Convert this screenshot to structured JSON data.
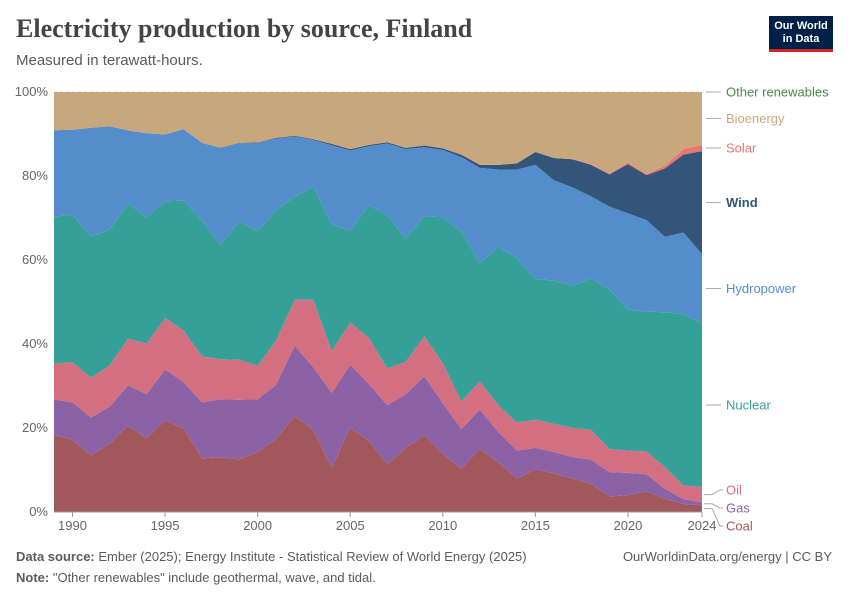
{
  "header": {
    "title": "Electricity production by source, Finland",
    "subtitle": "Measured in terawatt-hours.",
    "logo_line1": "Our World",
    "logo_line2": "in Data"
  },
  "footer": {
    "source_label": "Data source:",
    "source_text": "Ember (2025); Energy Institute - Statistical Review of World Energy (2025)",
    "note_label": "Note:",
    "note_text": "\"Other renewables\" include geothermal, wave, and tidal.",
    "credit": "OurWorldinData.org/energy | CC BY"
  },
  "colors": {
    "coal": "#a2585a",
    "gas": "#8b62a6",
    "oil": "#d46f81",
    "nuclear": "#34a097",
    "hydropower": "#548dcc",
    "wind": "#34557a",
    "solar": "#ee7371",
    "bioenergy": "#c9a77d",
    "other_renewables": "#4a8a4d"
  },
  "chart_data": {
    "type": "area",
    "stacking": "percent",
    "ylim": [
      0,
      100
    ],
    "y_ticks": [
      "0%",
      "20%",
      "40%",
      "60%",
      "80%",
      "100%"
    ],
    "y_tick_values": [
      0,
      20,
      40,
      60,
      80,
      100
    ],
    "x_ticks": [
      "1990",
      "1995",
      "2000",
      "2005",
      "2010",
      "2015",
      "2020",
      "2024"
    ],
    "x_tick_values": [
      1990,
      1995,
      2000,
      2005,
      2010,
      2015,
      2020,
      2024
    ],
    "x": [
      1989,
      1990,
      1991,
      1992,
      1993,
      1994,
      1995,
      1996,
      1997,
      1998,
      1999,
      2000,
      2001,
      2002,
      2003,
      2004,
      2005,
      2006,
      2007,
      2008,
      2009,
      2010,
      2011,
      2012,
      2013,
      2014,
      2015,
      2016,
      2017,
      2018,
      2019,
      2020,
      2021,
      2022,
      2023,
      2024
    ],
    "series": [
      {
        "name": "Coal",
        "key": "coal",
        "values": [
          18.3,
          17,
          13.5,
          16.5,
          21.3,
          17.5,
          22,
          18.7,
          11.8,
          13,
          12.5,
          14.3,
          17.3,
          22.8,
          19.5,
          9.5,
          20,
          17,
          11.3,
          15.3,
          18.1,
          13.8,
          10.3,
          15,
          11.8,
          8,
          10.2,
          9.2,
          8,
          6.5,
          3.7,
          4,
          4.9,
          3.1,
          1.9,
          1.6
        ]
      },
      {
        "name": "Gas",
        "key": "gas",
        "values": [
          8.5,
          8.8,
          9,
          9,
          10,
          10.5,
          12.2,
          10.3,
          12.3,
          13.7,
          14.2,
          12.5,
          13,
          16.7,
          15,
          16,
          15,
          13.5,
          14,
          12.7,
          14.1,
          12.1,
          9.4,
          9.3,
          7.2,
          6.8,
          5.1,
          5.1,
          5.1,
          5.6,
          5.8,
          5.3,
          4.1,
          2.4,
          1.2,
          0.7
        ]
      },
      {
        "name": "Oil",
        "key": "oil",
        "values": [
          8.5,
          9.5,
          9.5,
          10,
          11.5,
          12,
          12.3,
          11.5,
          10.1,
          9.5,
          9.5,
          8,
          10.5,
          11,
          16,
          9,
          10,
          11,
          8.7,
          7.7,
          9.5,
          9.5,
          6.6,
          6.7,
          6.3,
          6.8,
          6.7,
          6.7,
          6.9,
          6.9,
          5.5,
          5.3,
          5.4,
          5.2,
          3.2,
          3.7
        ]
      },
      {
        "name": "Nuclear",
        "key": "nuclear",
        "values": [
          35,
          34.7,
          33.5,
          33,
          33.5,
          30,
          28,
          29,
          30,
          27,
          33,
          32,
          31,
          24.5,
          27,
          27,
          22,
          31.5,
          36.2,
          29.3,
          28.4,
          34.7,
          40.4,
          28.1,
          37.6,
          39.6,
          33.6,
          34.1,
          33.8,
          35,
          38,
          33.5,
          33.3,
          36.9,
          40.9,
          39
        ]
      },
      {
        "name": "Hydropower",
        "key": "hydropower",
        "values": [
          20.6,
          20,
          26,
          25,
          18,
          20,
          16,
          16,
          17,
          23,
          18.5,
          21,
          17,
          14.3,
          11,
          17,
          19,
          14,
          17,
          21.3,
          16.4,
          16,
          17.7,
          22.6,
          18.4,
          21.3,
          27.2,
          23.9,
          23.5,
          18.9,
          19.7,
          22.9,
          21.8,
          18,
          19.4,
          16.5
        ]
      },
      {
        "name": "Wind",
        "key": "wind",
        "values": [
          0,
          0,
          0,
          0,
          0,
          0,
          0,
          0,
          0,
          0.1,
          0.1,
          0.1,
          0.2,
          0.2,
          0.2,
          0.3,
          0.3,
          0.3,
          0.3,
          0.3,
          0.4,
          0.4,
          0.6,
          0.7,
          1.1,
          1.5,
          3.1,
          5.3,
          6.7,
          7.3,
          7.7,
          11.7,
          10.7,
          16.3,
          18.6,
          24.5
        ]
      },
      {
        "name": "Solar",
        "key": "solar",
        "values": [
          0,
          0,
          0,
          0,
          0,
          0,
          0,
          0,
          0,
          0,
          0,
          0,
          0,
          0,
          0,
          0,
          0,
          0,
          0,
          0,
          0,
          0,
          0,
          0,
          0,
          0,
          0,
          0,
          0.1,
          0.1,
          0.2,
          0.3,
          0.3,
          0.6,
          1.3,
          1.5
        ]
      },
      {
        "name": "Bioenergy",
        "key": "bioenergy",
        "values": [
          9.1,
          8.9,
          8.5,
          8.3,
          9.5,
          9.8,
          10.2,
          8.3,
          11.2,
          13.2,
          12.1,
          12.0,
          10.9,
          10.4,
          11.2,
          11.1,
          13.6,
          12.6,
          11.9,
          13.3,
          12.7,
          13.4,
          14.9,
          17.3,
          17.3,
          17.2,
          14.3,
          15.7,
          15.9,
          16.7,
          19.4,
          16.8,
          19.5,
          17.6,
          13.6,
          12.6
        ]
      },
      {
        "name": "Other renewables",
        "key": "other_renewables",
        "values": [
          0,
          0,
          0,
          0,
          0,
          0,
          0,
          0,
          0,
          0,
          0,
          0,
          0,
          0,
          0,
          0,
          0,
          0,
          0,
          0,
          0,
          0,
          0,
          0,
          0,
          0,
          0,
          0,
          0,
          0,
          0,
          0,
          0,
          0,
          0,
          0
        ]
      }
    ]
  }
}
